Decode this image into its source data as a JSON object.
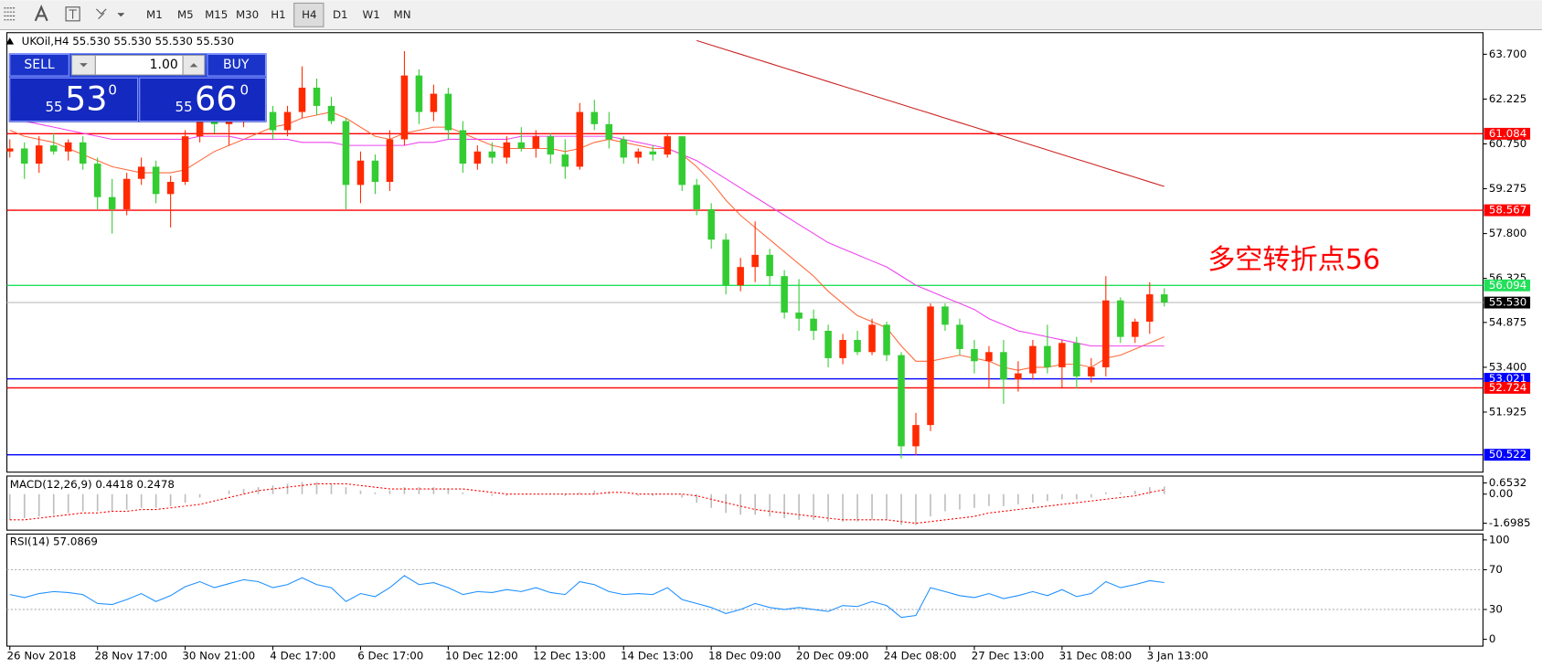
{
  "toolbar": {
    "timeframes": [
      "M1",
      "M5",
      "M15",
      "M30",
      "H1",
      "H4",
      "D1",
      "W1",
      "MN"
    ]
  },
  "trade_panel": {
    "sell": "SELL",
    "buy": "BUY",
    "lot": "1.00",
    "sell_price": [
      "55",
      "53",
      "0"
    ],
    "buy_price": [
      "55",
      "66",
      "0"
    ]
  },
  "chart_data": [
    {
      "type": "candlestick",
      "title": "UKOil,H4  55.530 55.530 55.530 55.530",
      "annotation": {
        "text": "多空转折点56",
        "color": "#ff0000"
      },
      "up_color": "#ff2a00",
      "down_color": "#33cc33",
      "categories": [
        "26 Nov 2018",
        null,
        null,
        null,
        null,
        null,
        "28 Nov 17:00",
        null,
        null,
        null,
        null,
        null,
        "30 Nov 21:00",
        null,
        null,
        null,
        null,
        null,
        "4 Dec 17:00",
        null,
        null,
        null,
        null,
        null,
        "6 Dec 17:00",
        null,
        null,
        null,
        null,
        null,
        "10 Dec 12:00",
        null,
        null,
        null,
        null,
        null,
        "12 Dec 13:00",
        null,
        null,
        null,
        null,
        null,
        "14 Dec 13:00",
        null,
        null,
        null,
        null,
        null,
        "18 Dec 09:00",
        null,
        null,
        null,
        null,
        null,
        "20 Dec 09:00",
        null,
        null,
        null,
        null,
        null,
        "24 Dec 08:00",
        null,
        null,
        null,
        null,
        null,
        "27 Dec 13:00",
        null,
        null,
        null,
        null,
        null,
        "31 Dec 08:00",
        null,
        null,
        null,
        null,
        null,
        "3 Jan 13:00",
        null
      ],
      "candles": [
        [
          60.5,
          60.9,
          60.3,
          60.6
        ],
        [
          60.6,
          60.8,
          59.6,
          60.1
        ],
        [
          60.1,
          61.0,
          59.8,
          60.7
        ],
        [
          60.7,
          61.1,
          60.4,
          60.5
        ],
        [
          60.5,
          60.9,
          60.2,
          60.8
        ],
        [
          60.8,
          61.0,
          59.9,
          60.1
        ],
        [
          60.1,
          60.3,
          58.6,
          59.0
        ],
        [
          59.0,
          59.6,
          57.8,
          58.6
        ],
        [
          58.6,
          59.8,
          58.4,
          59.6
        ],
        [
          59.6,
          60.3,
          59.4,
          60.0
        ],
        [
          60.0,
          60.2,
          58.8,
          59.1
        ],
        [
          59.1,
          59.7,
          58.0,
          59.5
        ],
        [
          59.5,
          61.2,
          59.4,
          61.0
        ],
        [
          61.0,
          62.3,
          60.8,
          61.9
        ],
        [
          61.9,
          62.1,
          61.1,
          61.4
        ],
        [
          61.4,
          61.8,
          60.7,
          61.6
        ],
        [
          61.6,
          62.2,
          61.3,
          62.0
        ],
        [
          62.0,
          62.5,
          61.5,
          61.8
        ],
        [
          61.8,
          62.0,
          60.9,
          61.2
        ],
        [
          61.2,
          62.0,
          61.0,
          61.8
        ],
        [
          61.8,
          63.3,
          61.6,
          62.6
        ],
        [
          62.6,
          62.9,
          61.7,
          62.0
        ],
        [
          62.0,
          62.3,
          61.4,
          61.5
        ],
        [
          61.5,
          61.6,
          58.6,
          59.4
        ],
        [
          59.4,
          60.5,
          58.8,
          60.2
        ],
        [
          60.2,
          60.4,
          59.1,
          59.5
        ],
        [
          59.5,
          61.2,
          59.2,
          60.9
        ],
        [
          60.9,
          63.8,
          60.7,
          63.0
        ],
        [
          63.0,
          63.2,
          61.4,
          61.8
        ],
        [
          61.8,
          62.7,
          61.5,
          62.4
        ],
        [
          62.4,
          62.6,
          60.9,
          61.2
        ],
        [
          61.2,
          61.5,
          59.8,
          60.1
        ],
        [
          60.1,
          60.7,
          59.9,
          60.5
        ],
        [
          60.5,
          60.8,
          60.1,
          60.3
        ],
        [
          60.3,
          61.0,
          60.1,
          60.8
        ],
        [
          60.8,
          61.3,
          60.5,
          60.6
        ],
        [
          60.6,
          61.2,
          60.3,
          61.0
        ],
        [
          61.0,
          61.1,
          60.1,
          60.4
        ],
        [
          60.4,
          60.9,
          59.6,
          60.0
        ],
        [
          60.0,
          62.1,
          59.9,
          61.8
        ],
        [
          61.8,
          62.2,
          61.2,
          61.4
        ],
        [
          61.4,
          61.8,
          60.6,
          60.9
        ],
        [
          60.9,
          61.0,
          60.1,
          60.3
        ],
        [
          60.3,
          60.6,
          60.1,
          60.5
        ],
        [
          60.5,
          60.7,
          60.2,
          60.4
        ],
        [
          60.4,
          61.1,
          60.3,
          61.0
        ],
        [
          61.0,
          61.0,
          59.2,
          59.4
        ],
        [
          59.4,
          59.6,
          58.4,
          58.6
        ],
        [
          58.6,
          58.8,
          57.3,
          57.6
        ],
        [
          57.6,
          57.8,
          55.8,
          56.1
        ],
        [
          56.1,
          57.0,
          55.9,
          56.7
        ],
        [
          56.7,
          58.2,
          56.2,
          57.1
        ],
        [
          57.1,
          57.3,
          56.1,
          56.4
        ],
        [
          56.4,
          56.6,
          55.0,
          55.2
        ],
        [
          55.2,
          56.3,
          54.6,
          55.0
        ],
        [
          55.0,
          55.3,
          54.3,
          54.6
        ],
        [
          54.6,
          54.8,
          53.4,
          53.7
        ],
        [
          53.7,
          54.5,
          53.5,
          54.3
        ],
        [
          54.3,
          54.6,
          53.8,
          53.9
        ],
        [
          53.9,
          55.0,
          53.8,
          54.8
        ],
        [
          54.8,
          54.9,
          53.6,
          53.8
        ],
        [
          53.8,
          53.9,
          50.4,
          50.8
        ],
        [
          50.8,
          51.9,
          50.5,
          51.5
        ],
        [
          51.5,
          55.5,
          51.3,
          55.4
        ],
        [
          55.4,
          55.5,
          54.6,
          54.8
        ],
        [
          54.8,
          55.0,
          53.8,
          54.0
        ],
        [
          54.0,
          54.3,
          53.2,
          53.6
        ],
        [
          53.6,
          54.1,
          52.7,
          53.9
        ],
        [
          53.9,
          54.3,
          52.2,
          53.0
        ],
        [
          53.0,
          53.6,
          52.6,
          53.2
        ],
        [
          53.2,
          54.3,
          53.0,
          54.1
        ],
        [
          54.1,
          54.8,
          53.2,
          53.4
        ],
        [
          53.4,
          54.3,
          52.7,
          54.2
        ],
        [
          54.2,
          54.4,
          52.7,
          53.1
        ],
        [
          53.1,
          53.7,
          52.9,
          53.4
        ],
        [
          53.4,
          56.4,
          53.1,
          55.6
        ],
        [
          55.6,
          55.7,
          54.2,
          54.4
        ],
        [
          54.4,
          55.0,
          54.2,
          54.9
        ],
        [
          54.9,
          56.2,
          54.5,
          55.8
        ],
        [
          55.8,
          56.0,
          55.4,
          55.53
        ]
      ],
      "overlays": [
        {
          "color": "#ff6a3d",
          "values": [
            61.2,
            61.0,
            60.9,
            60.8,
            60.6,
            60.4,
            60.2,
            60.0,
            59.9,
            59.8,
            59.8,
            59.8,
            59.9,
            60.2,
            60.5,
            60.7,
            60.9,
            61.1,
            61.3,
            61.4,
            61.6,
            61.7,
            61.8,
            61.6,
            61.3,
            61.0,
            60.9,
            61.1,
            61.2,
            61.3,
            61.3,
            61.1,
            60.9,
            60.7,
            60.6,
            60.6,
            60.6,
            60.6,
            60.5,
            60.6,
            60.8,
            60.9,
            60.8,
            60.7,
            60.6,
            60.6,
            60.4,
            60.0,
            59.5,
            58.9,
            58.4,
            58.0,
            57.6,
            57.2,
            56.8,
            56.4,
            55.9,
            55.5,
            55.1,
            54.9,
            54.7,
            54.1,
            53.6,
            53.6,
            53.7,
            53.8,
            53.7,
            53.6,
            53.4,
            53.3,
            53.4,
            53.4,
            53.5,
            53.5,
            53.4,
            53.7,
            53.8,
            54.0,
            54.2,
            54.4
          ]
        },
        {
          "color": "#ee44ee",
          "values": [
            61.6,
            61.5,
            61.4,
            61.3,
            61.2,
            61.1,
            61.0,
            60.9,
            60.9,
            60.9,
            60.9,
            60.9,
            60.9,
            61.0,
            61.0,
            61.0,
            60.9,
            60.9,
            60.9,
            60.9,
            60.8,
            60.8,
            60.8,
            60.7,
            60.7,
            60.7,
            60.7,
            60.7,
            60.8,
            60.8,
            60.9,
            60.9,
            60.9,
            60.9,
            60.9,
            61.0,
            61.0,
            61.0,
            61.0,
            61.0,
            61.0,
            61.0,
            60.9,
            60.8,
            60.7,
            60.6,
            60.4,
            60.2,
            59.9,
            59.6,
            59.3,
            59.0,
            58.7,
            58.4,
            58.1,
            57.8,
            57.5,
            57.3,
            57.1,
            56.9,
            56.7,
            56.4,
            56.1,
            55.9,
            55.7,
            55.5,
            55.3,
            55.0,
            54.8,
            54.6,
            54.5,
            54.4,
            54.3,
            54.2,
            54.1,
            54.1,
            54.1,
            54.1,
            54.1,
            54.1
          ]
        },
        {
          "color": "#cc2222",
          "values": [
            null,
            null,
            null,
            null,
            null,
            null,
            null,
            null,
            null,
            null,
            null,
            null,
            null,
            null,
            null,
            null,
            null,
            null,
            null,
            null,
            null,
            null,
            null,
            null,
            null,
            null,
            null,
            null,
            null,
            null,
            null,
            null,
            null,
            null,
            null,
            null,
            null,
            null,
            null,
            null,
            null,
            null,
            null,
            null,
            null,
            null,
            null,
            64.15,
            64.0,
            63.85,
            63.7,
            63.55,
            63.4,
            63.25,
            63.1,
            62.95,
            62.8,
            62.65,
            62.5,
            62.35,
            62.2,
            62.05,
            61.9,
            61.75,
            61.6,
            61.45,
            61.3,
            61.15,
            61.0,
            60.85,
            60.7,
            60.55,
            60.4,
            60.25,
            60.1,
            59.95,
            59.8,
            59.65,
            59.5,
            59.35
          ]
        }
      ],
      "levels": [
        {
          "price": 61.084,
          "color": "#ff0000"
        },
        {
          "price": 58.567,
          "color": "#ff0000"
        },
        {
          "price": 56.094,
          "color": "#22e05a"
        },
        {
          "price": 55.53,
          "label": "55.530",
          "color": "#c8c8c8",
          "box": "#000000"
        },
        {
          "price": 53.021,
          "color": "#0000ff"
        },
        {
          "price": 52.724,
          "color": "#ff0000"
        },
        {
          "price": 50.522,
          "color": "#0000ff"
        }
      ],
      "ylim": [
        49.95,
        64.41
      ],
      "yticks": [
        {
          "value": 63.7,
          "label": "63.700"
        },
        {
          "value": 62.225,
          "label": "62.225"
        },
        {
          "value": 60.75,
          "label": "60.750"
        },
        {
          "value": 59.275,
          "label": "59.275"
        },
        {
          "value": 57.8,
          "label": "57.800"
        },
        {
          "value": 56.325,
          "label": "56.325"
        },
        {
          "value": 54.875,
          "label": "54.875"
        },
        {
          "value": 53.4,
          "label": "53.400"
        },
        {
          "value": 51.925,
          "label": "51.925"
        }
      ]
    },
    {
      "type": "macd",
      "title": "MACD(12,26,9) 0.4418 0.2478",
      "histogram": {
        "color": "#bdbdbd",
        "values": [
          -1.5,
          -1.4,
          -1.3,
          -1.2,
          -1.1,
          -1.0,
          -1.0,
          -1.0,
          -0.9,
          -0.8,
          -0.8,
          -0.7,
          -0.5,
          -0.2,
          0.0,
          0.2,
          0.3,
          0.4,
          0.5,
          0.6,
          0.7,
          0.7,
          0.6,
          0.4,
          0.2,
          0.1,
          0.2,
          0.4,
          0.4,
          0.4,
          0.3,
          0.1,
          0.0,
          -0.1,
          -0.1,
          0.0,
          0.0,
          0.0,
          -0.1,
          0.1,
          0.2,
          0.1,
          0.0,
          -0.1,
          -0.1,
          0.0,
          -0.2,
          -0.5,
          -0.8,
          -1.1,
          -1.2,
          -1.2,
          -1.3,
          -1.4,
          -1.5,
          -1.5,
          -1.6,
          -1.6,
          -1.6,
          -1.5,
          -1.5,
          -1.8,
          -1.8,
          -1.3,
          -1.0,
          -0.9,
          -0.8,
          -0.7,
          -0.7,
          -0.6,
          -0.5,
          -0.4,
          -0.3,
          -0.3,
          -0.2,
          0.1,
          0.1,
          0.2,
          0.4,
          0.44
        ]
      },
      "signal": {
        "color": "#ff0000",
        "values": [
          -1.5,
          -1.5,
          -1.4,
          -1.3,
          -1.2,
          -1.1,
          -1.1,
          -1.0,
          -1.0,
          -0.9,
          -0.9,
          -0.8,
          -0.7,
          -0.6,
          -0.4,
          -0.2,
          0.0,
          0.2,
          0.3,
          0.4,
          0.5,
          0.6,
          0.6,
          0.6,
          0.5,
          0.4,
          0.3,
          0.3,
          0.3,
          0.3,
          0.3,
          0.3,
          0.2,
          0.1,
          0.0,
          0.0,
          0.0,
          0.0,
          0.0,
          0.0,
          0.0,
          0.1,
          0.1,
          0.0,
          0.0,
          0.0,
          0.0,
          -0.1,
          -0.3,
          -0.5,
          -0.7,
          -0.9,
          -1.0,
          -1.1,
          -1.2,
          -1.3,
          -1.4,
          -1.5,
          -1.5,
          -1.5,
          -1.5,
          -1.6,
          -1.7,
          -1.6,
          -1.5,
          -1.4,
          -1.3,
          -1.1,
          -1.0,
          -0.9,
          -0.8,
          -0.7,
          -0.6,
          -0.5,
          -0.4,
          -0.3,
          -0.2,
          -0.1,
          0.1,
          0.25
        ]
      },
      "ylim": [
        -2.1,
        1.05
      ],
      "yticks": [
        0.6532,
        {
          "value": 0,
          "label": "0.00"
        },
        -1.6985
      ]
    },
    {
      "type": "line",
      "title": "RSI(14) 57.0869",
      "color": "#1e90ff",
      "values": [
        45,
        42,
        46,
        48,
        47,
        45,
        36,
        35,
        40,
        46,
        38,
        44,
        53,
        58,
        52,
        56,
        60,
        58,
        52,
        55,
        62,
        55,
        52,
        38,
        46,
        43,
        52,
        64,
        55,
        57,
        52,
        45,
        48,
        47,
        50,
        48,
        52,
        47,
        45,
        58,
        55,
        48,
        45,
        46,
        45,
        52,
        40,
        36,
        32,
        26,
        30,
        36,
        32,
        30,
        32,
        30,
        28,
        34,
        33,
        38,
        34,
        22,
        24,
        52,
        48,
        44,
        42,
        46,
        41,
        44,
        48,
        44,
        50,
        43,
        46,
        58,
        52,
        55,
        59,
        57.0869
      ],
      "levels": [
        70,
        30
      ],
      "ylim": [
        -6.9,
        105.9
      ],
      "yticks": [
        100,
        70,
        30,
        0
      ]
    }
  ]
}
